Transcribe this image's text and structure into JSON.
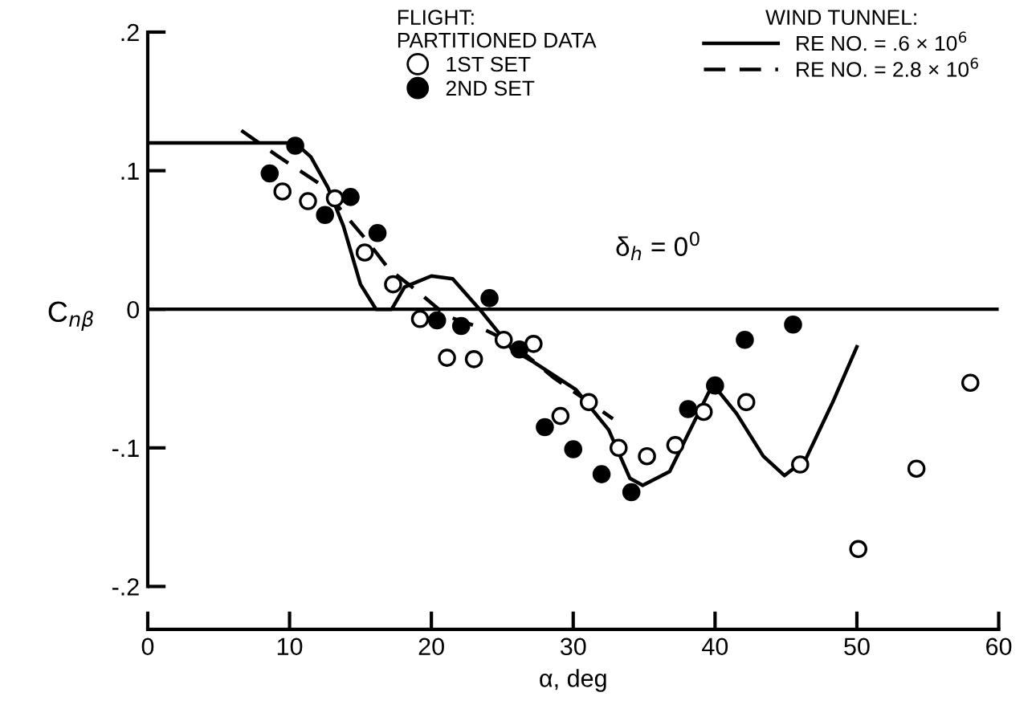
{
  "chart_data": {
    "type": "scatter",
    "xlabel": "α, deg",
    "ylabel": "C$_{nβ}$",
    "legend_title": "FLIGHT:\nPARTITIONED DATA",
    "annotations": [
      "WIND TUNNEL:",
      "δ$_{h}$ = 0$^{0}$"
    ],
    "xlim": [
      0,
      60
    ],
    "xticks": [
      0,
      10,
      20,
      30,
      40,
      50,
      60
    ],
    "ylim": [
      -0.231,
      0.2
    ],
    "yticks": [
      {
        "value": -0.2,
        "label": "-.2"
      },
      {
        "value": -0.1,
        "label": "-.1"
      },
      0,
      {
        "value": 0.1,
        "label": ".1"
      },
      {
        "value": 0.2,
        "label": ".2"
      }
    ],
    "grid": false,
    "legend": "top right",
    "ref_lines": [
      {
        "axis": "y",
        "value": 0,
        "color": "#000000",
        "line_style": "solid"
      }
    ],
    "series": [
      {
        "name": "1ST SET",
        "marker": "circle",
        "color": "#ffffff",
        "x": [
          9.5,
          11.3,
          13.2,
          15.3,
          17.3,
          19.2,
          21.1,
          23,
          25.1,
          27.2,
          29.1,
          31.1,
          33.2,
          35.2,
          37.2,
          39.2,
          42.2,
          46,
          50.1,
          54.2,
          58
        ],
        "values": [
          0.085,
          0.078,
          0.08,
          0.041,
          0.018,
          -0.007,
          -0.035,
          -0.036,
          -0.022,
          -0.025,
          -0.077,
          -0.067,
          -0.1,
          -0.106,
          -0.098,
          -0.074,
          -0.067,
          -0.112,
          -0.173,
          -0.115,
          -0.053
        ]
      },
      {
        "name": "2ND SET",
        "marker": "circle",
        "color": "#000000",
        "x": [
          8.6,
          10.4,
          12.5,
          14.3,
          16.2,
          20.4,
          22.1,
          24.1,
          26.2,
          28,
          30,
          32,
          34.1,
          38.1,
          40,
          42.1,
          45.5
        ],
        "values": [
          0.098,
          0.118,
          0.068,
          0.081,
          0.055,
          -0.008,
          -0.012,
          0.008,
          -0.029,
          -0.085,
          -0.101,
          -0.119,
          -0.132,
          -0.072,
          -0.055,
          -0.022,
          -0.011
        ]
      },
      {
        "name": "RE NO. = .6 × 10$^{6}$",
        "type": "line",
        "marker": "none",
        "line_style": "solid",
        "color": "#000000",
        "x": [
          0,
          10.4,
          11.5,
          12.7,
          13.8,
          15,
          16.1,
          17.2,
          18.1,
          20,
          21.5,
          23.4,
          25.7,
          27.2,
          30.2,
          32.5,
          34,
          34.9,
          36.8,
          38.2,
          39.6,
          40,
          41.5,
          43.4,
          44.9,
          46.4,
          48.3,
          50
        ],
        "values": [
          0.12,
          0.12,
          0.11,
          0.088,
          0.06,
          0.018,
          0.0,
          0.0,
          0.016,
          0.024,
          0.022,
          0.0,
          -0.029,
          -0.038,
          -0.058,
          -0.087,
          -0.122,
          -0.127,
          -0.117,
          -0.088,
          -0.059,
          -0.056,
          -0.075,
          -0.106,
          -0.12,
          -0.108,
          -0.067,
          -0.027
        ]
      },
      {
        "name": "RE NO. = 2.8 × 10$^{6}$",
        "type": "line",
        "marker": "none",
        "line_style": "dashed",
        "color": "#000000",
        "x": [
          6.6,
          9.1,
          12.2,
          13.6,
          15.5,
          17,
          18.9,
          21.1,
          23.4,
          25.6,
          28.7,
          32.8
        ],
        "values": [
          0.129,
          0.111,
          0.09,
          0.072,
          0.049,
          0.029,
          0.014,
          -0.005,
          -0.013,
          -0.024,
          -0.05,
          -0.079
        ]
      }
    ]
  }
}
